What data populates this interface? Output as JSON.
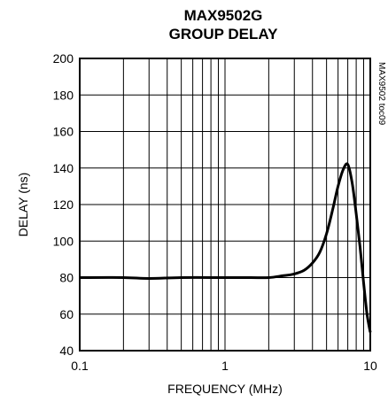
{
  "chart_data": {
    "type": "line",
    "title": "MAX9502G",
    "subtitle": "GROUP DELAY",
    "xlabel": "FREQUENCY (MHz)",
    "ylabel": "DELAY (ns)",
    "x_scale": "log",
    "xlim": [
      0.1,
      10
    ],
    "ylim": [
      40,
      200
    ],
    "grid": true,
    "x_ticks": [
      0.1,
      1,
      10
    ],
    "x_tick_labels": [
      "0.1",
      "1",
      "10"
    ],
    "y_ticks": [
      40,
      60,
      80,
      100,
      120,
      140,
      160,
      180,
      200
    ],
    "y_tick_labels": [
      "40",
      "60",
      "80",
      "100",
      "120",
      "140",
      "160",
      "180",
      "200"
    ],
    "annotation": "MAX9502 toc09",
    "series": [
      {
        "x": [
          0.1,
          0.2,
          0.3,
          0.5,
          1.0,
          1.5,
          2.0,
          2.5,
          3.0,
          3.5,
          4.0,
          4.5,
          5.0,
          5.5,
          6.0,
          6.5,
          7.0,
          7.5,
          8.0,
          8.5,
          9.0,
          9.5,
          10.0
        ],
        "y": [
          80,
          80,
          79.5,
          80,
          80,
          80,
          80,
          81,
          82,
          84,
          88,
          94,
          104,
          117,
          130,
          139,
          142,
          132,
          115,
          97,
          77,
          60,
          50
        ]
      }
    ]
  }
}
